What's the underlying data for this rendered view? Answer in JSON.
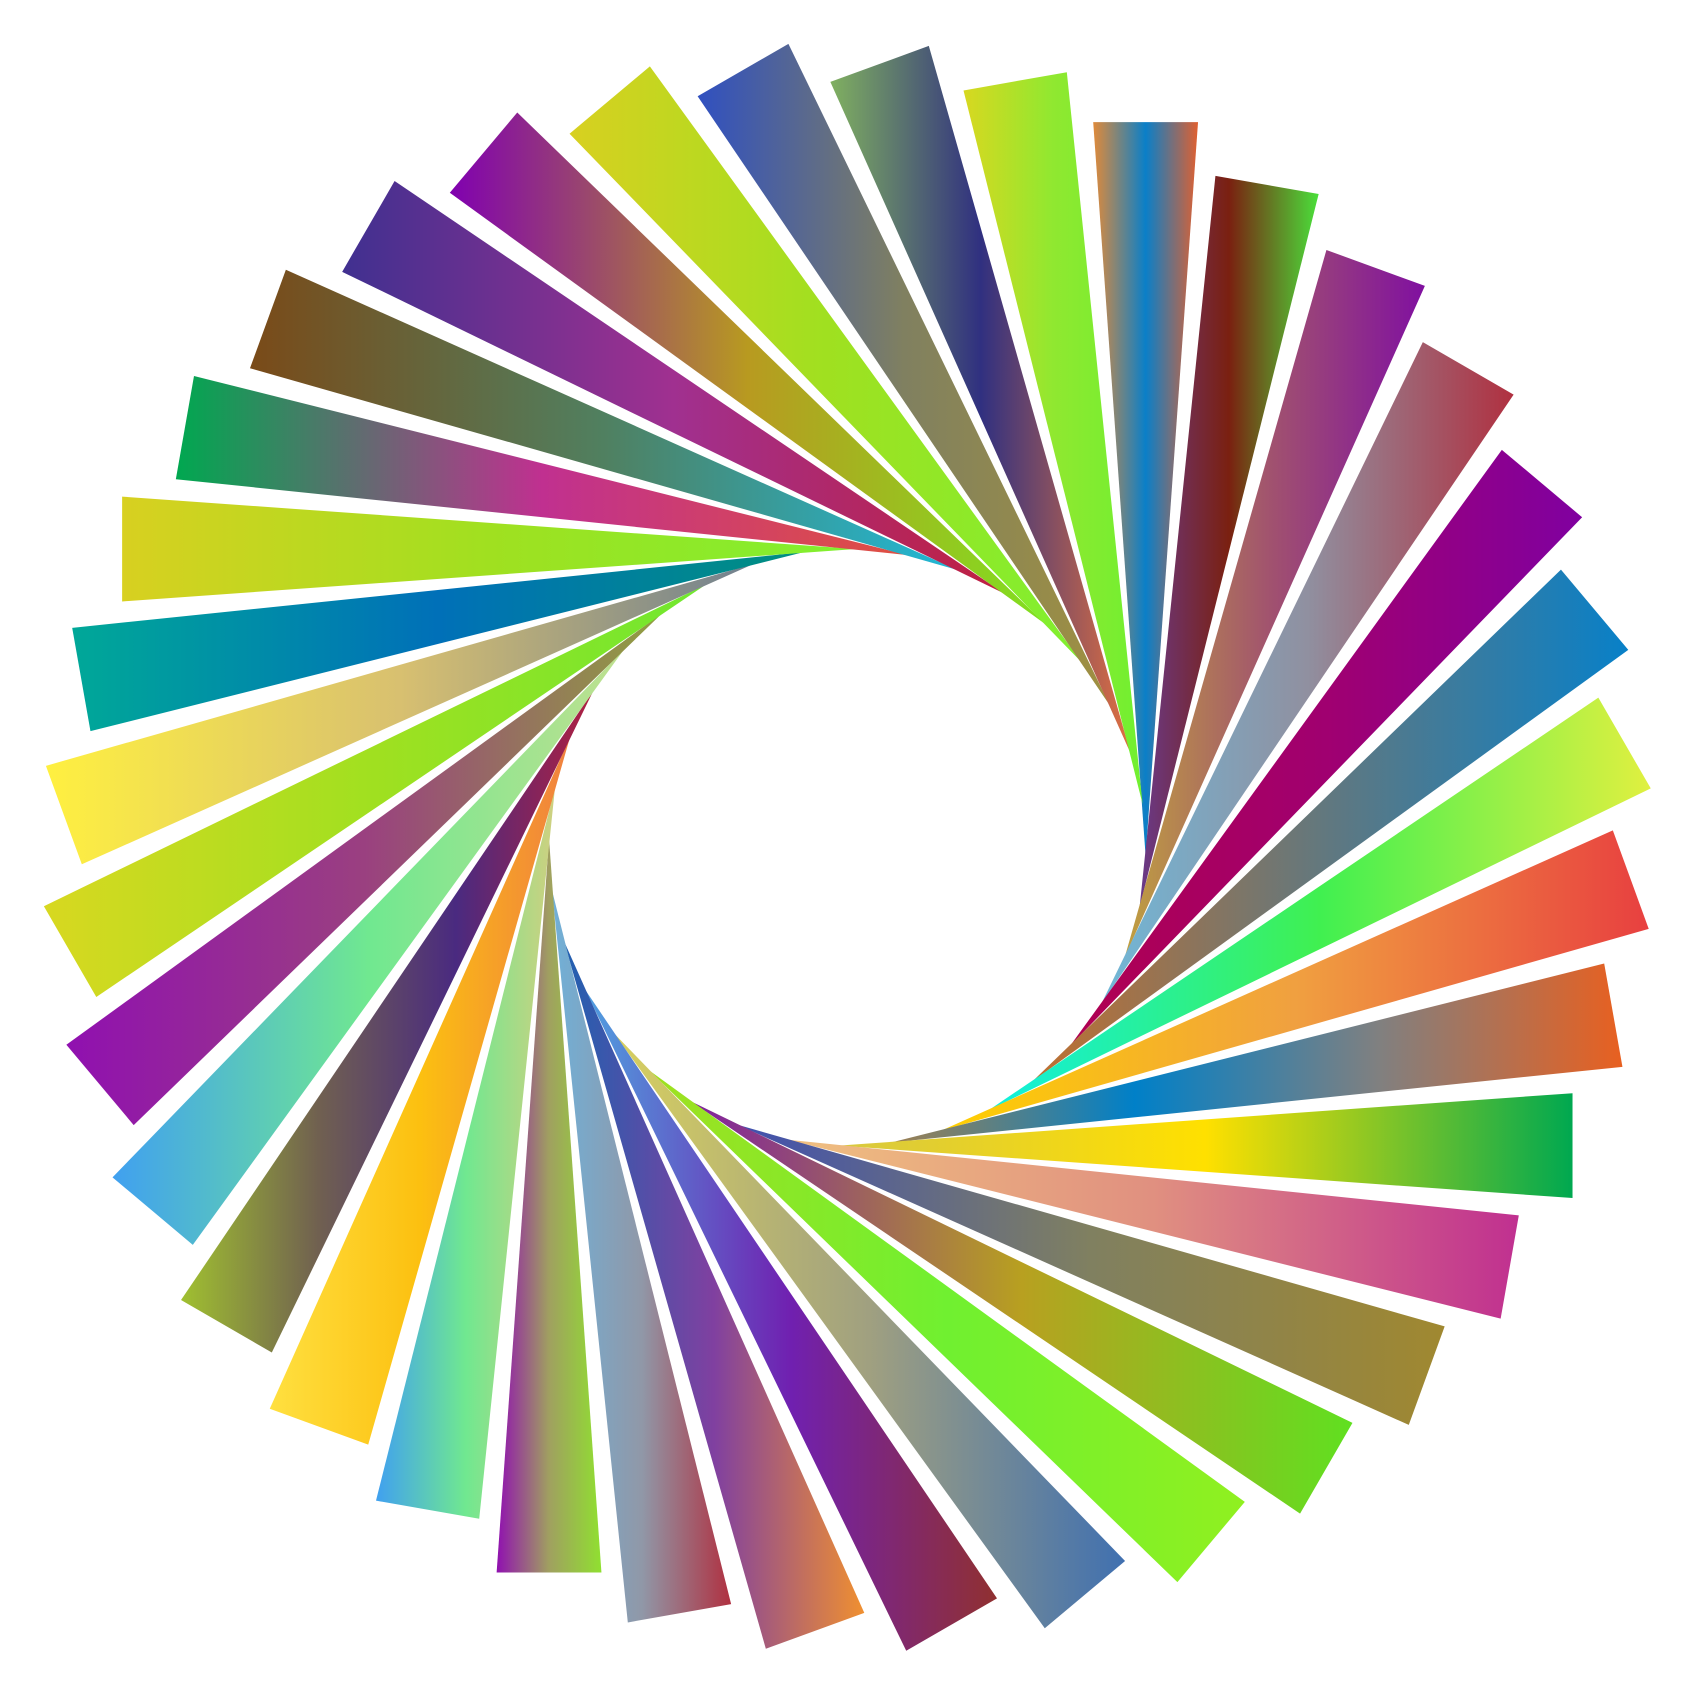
{
  "background": "#ffffff",
  "bar_count": 36,
  "bars": [
    {
      "colors": [
        "#e08a3a",
        "#0a7fc8",
        "#e06030"
      ]
    },
    {
      "colors": [
        "#6a3a8a",
        "#7a2010",
        "#4adf3a"
      ]
    },
    {
      "colors": [
        "#c0a040",
        "#a05070",
        "#8010a0"
      ]
    },
    {
      "colors": [
        "#70b8d8",
        "#9090a0",
        "#b03040"
      ]
    },
    {
      "colors": [
        "#b00050",
        "#a00070",
        "#8000a0"
      ]
    },
    {
      "colors": [
        "#c07030",
        "#607880",
        "#0880c8"
      ]
    },
    {
      "colors": [
        "#10f0e0",
        "#40f050",
        "#e0f040"
      ]
    },
    {
      "colors": [
        "#ffd000",
        "#f0a040",
        "#e84040"
      ]
    },
    {
      "colors": [
        "#a08050",
        "#0080c8",
        "#808080",
        "#e86020"
      ]
    },
    {
      "colors": [
        "#d8c840",
        "#ffe000",
        "#00a850"
      ]
    },
    {
      "colors": [
        "#f0c080",
        "#e09080",
        "#c03090"
      ]
    },
    {
      "colors": [
        "#4050b0",
        "#808060",
        "#a08830"
      ]
    },
    {
      "colors": [
        "#8020a0",
        "#b8a020",
        "#60e020"
      ]
    },
    {
      "colors": [
        "#a0e020",
        "#70f030",
        "#90f020"
      ]
    },
    {
      "colors": [
        "#d8d060",
        "#a0a080",
        "#4070b0"
      ]
    },
    {
      "colors": [
        "#50a0e0",
        "#7020b0",
        "#903030"
      ]
    },
    {
      "colors": [
        "#2060b0",
        "#8040a0",
        "#f09030"
      ]
    },
    {
      "colors": [
        "#70b0d8",
        "#9098a8",
        "#b03040"
      ]
    },
    {
      "colors": [
        "#9010b0",
        "#a0a060",
        "#90e030"
      ]
    },
    {
      "colors": [
        "#40a0f0",
        "#70e890",
        "#d0d080"
      ]
    },
    {
      "colors": [
        "#ffe040",
        "#fcc010",
        "#f08040"
      ]
    },
    {
      "colors": [
        "#a0c030",
        "#706050",
        "#4a2a80",
        "#b02040"
      ]
    },
    {
      "colors": [
        "#40a0f0",
        "#70e890",
        "#c0e090"
      ]
    },
    {
      "colors": [
        "#9010b0",
        "#9a4080",
        "#90a040"
      ]
    },
    {
      "colors": [
        "#d8d820",
        "#a0e020",
        "#70e830"
      ]
    },
    {
      "colors": [
        "#fff040",
        "#d8c070",
        "#708090"
      ]
    },
    {
      "colors": [
        "#00a898",
        "#0070b8",
        "#009080"
      ]
    },
    {
      "colors": [
        "#d8d020",
        "#a0e020",
        "#80f030"
      ]
    },
    {
      "colors": [
        "#00a850",
        "#c03090",
        "#e05040"
      ]
    },
    {
      "colors": [
        "#7a4a18",
        "#508060",
        "#20b8d8"
      ]
    },
    {
      "colors": [
        "#403090",
        "#a03090",
        "#c02040"
      ]
    },
    {
      "colors": [
        "#8000b0",
        "#b89a20",
        "#80e020"
      ]
    },
    {
      "colors": [
        "#d8d020",
        "#a0e020",
        "#80f030"
      ]
    },
    {
      "colors": [
        "#3050c0",
        "#808060",
        "#a09040"
      ]
    },
    {
      "colors": [
        "#80b060",
        "#303080",
        "#e07040"
      ]
    },
    {
      "colors": [
        "#d8d820",
        "#90e830",
        "#70f030"
      ]
    }
  ]
}
